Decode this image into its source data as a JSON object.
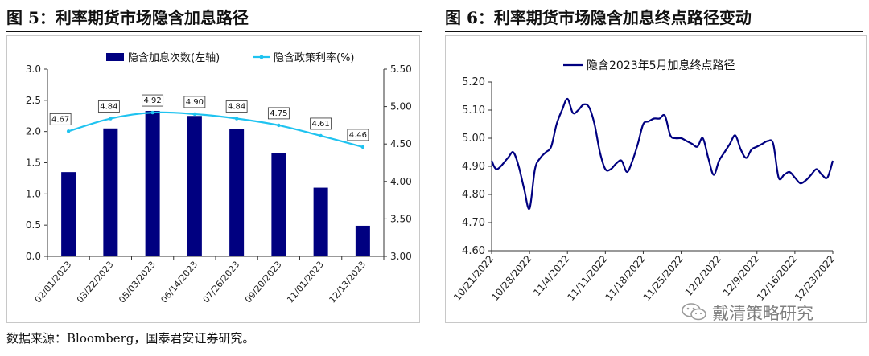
{
  "fig5": {
    "title": "图  5：利率期货市场隐含加息路径",
    "chart_data": {
      "type": "bar",
      "categories": [
        "02/01/2023",
        "03/22/2023",
        "05/03/2023",
        "06/14/2023",
        "07/26/2023",
        "09/20/2023",
        "11/01/2023",
        "12/13/2023"
      ],
      "series": [
        {
          "name": "隐含加息次数(左轴)",
          "type": "bar",
          "axis": "left",
          "color": "#000080",
          "values": [
            1.35,
            2.05,
            2.33,
            2.25,
            2.04,
            1.65,
            1.1,
            0.49
          ]
        },
        {
          "name": "隐含政策利率(%)",
          "type": "line",
          "axis": "right",
          "color": "#1fc3f0",
          "values": [
            4.67,
            4.84,
            4.92,
            4.9,
            4.84,
            4.75,
            4.61,
            4.46
          ],
          "data_labels": [
            "4.67",
            "4.84",
            "4.92",
            "4.90",
            "4.84",
            "4.75",
            "4.61",
            "4.46"
          ]
        }
      ],
      "y_left": {
        "lim": [
          0,
          3.0
        ],
        "ticks": [
          "0.0",
          "0.5",
          "1.0",
          "1.5",
          "2.0",
          "2.5",
          "3.0"
        ]
      },
      "y_right": {
        "lim": [
          3.0,
          5.5
        ],
        "ticks": [
          "3.00",
          "3.50",
          "4.00",
          "4.50",
          "5.00",
          "5.50"
        ]
      },
      "legend": "top",
      "grid": false
    }
  },
  "fig6": {
    "title": "图  6：利率期货市场隐含加息终点路径变动",
    "chart_data": {
      "type": "line",
      "series": [
        {
          "name": "隐含2023年5月加息终点路径",
          "color": "#000080",
          "x": [
            "10/21/2022",
            "10/22/2022",
            "10/24/2022",
            "10/25/2022",
            "10/26/2022",
            "10/27/2022",
            "10/28/2022",
            "10/29/2022",
            "10/30/2022",
            "10/31/2022",
            "11/1/2022",
            "11/2/2022",
            "11/3/2022",
            "11/4/2022",
            "11/5/2022",
            "11/6/2022",
            "11/7/2022",
            "11/8/2022",
            "11/9/2022",
            "11/10/2022",
            "11/11/2022",
            "11/12/2022",
            "11/13/2022",
            "11/14/2022",
            "11/15/2022",
            "11/16/2022",
            "11/17/2022",
            "11/18/2022",
            "11/19/2022",
            "11/20/2022",
            "11/21/2022",
            "11/22/2022",
            "11/23/2022",
            "11/24/2022",
            "11/25/2022",
            "11/26/2022",
            "11/27/2022",
            "11/28/2022",
            "11/29/2022",
            "11/30/2022",
            "12/1/2022",
            "12/2/2022",
            "12/3/2022",
            "12/4/2022",
            "12/5/2022",
            "12/6/2022",
            "12/7/2022",
            "12/8/2022",
            "12/9/2022",
            "12/10/2022",
            "12/11/2022",
            "12/12/2022",
            "12/13/2022",
            "12/14/2022",
            "12/15/2022",
            "12/16/2022",
            "12/17/2022",
            "12/18/2022",
            "12/19/2022",
            "12/20/2022",
            "12/21/2022",
            "12/22/2022",
            "12/23/2022"
          ],
          "values": [
            4.92,
            4.89,
            4.93,
            4.95,
            4.9,
            4.82,
            4.75,
            4.89,
            4.93,
            4.95,
            4.97,
            5.05,
            5.1,
            5.14,
            5.09,
            5.1,
            5.12,
            5.11,
            5.05,
            4.95,
            4.89,
            4.89,
            4.91,
            4.92,
            4.88,
            4.92,
            4.98,
            5.05,
            5.06,
            5.07,
            5.07,
            5.08,
            5.01,
            5.0,
            5.0,
            4.99,
            4.98,
            4.97,
            5.0,
            4.93,
            4.87,
            4.92,
            4.95,
            4.98,
            5.01,
            4.96,
            4.93,
            4.96,
            4.97,
            4.98,
            4.99,
            4.98,
            4.86,
            4.87,
            4.88,
            4.86,
            4.84,
            4.85,
            4.87,
            4.89,
            4.87,
            4.86,
            4.92
          ]
        }
      ],
      "y": {
        "lim": [
          4.6,
          5.2
        ],
        "ticks": [
          "4.60",
          "4.70",
          "4.80",
          "4.90",
          "5.00",
          "5.10",
          "5.20"
        ]
      },
      "x_ticks": [
        "10/21/2022",
        "10/28/2022",
        "11/4/2022",
        "11/11/2022",
        "11/18/2022",
        "11/25/2022",
        "12/2/2022",
        "12/9/2022",
        "12/16/2022",
        "12/23/2022"
      ],
      "legend": "top",
      "grid": false
    }
  },
  "footer": {
    "source": "数据来源：Bloomberg，国泰君安证券研究。",
    "watermark": "戴清策略研究"
  }
}
